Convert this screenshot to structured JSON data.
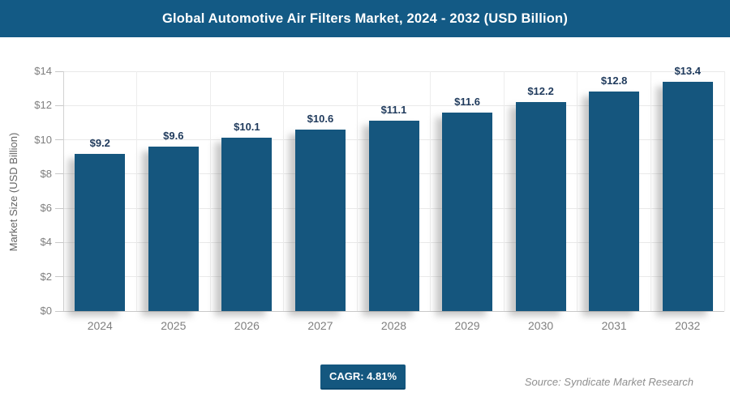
{
  "header": {
    "title": "Global Automotive Air Filters Market, 2024 - 2032 (USD Billion)",
    "bg_color": "#135a85",
    "text_color": "#ffffff"
  },
  "chart_data": {
    "type": "bar",
    "title": "Global Automotive Air Filters Market, 2024 - 2032 (USD Billion)",
    "categories": [
      "2024",
      "2025",
      "2026",
      "2027",
      "2028",
      "2029",
      "2030",
      "2031",
      "2032"
    ],
    "values": [
      9.2,
      9.6,
      10.1,
      10.6,
      11.1,
      11.6,
      12.2,
      12.8,
      13.4
    ],
    "data_labels": [
      "$9.2",
      "$9.6",
      "$10.1",
      "$10.6",
      "$11.1",
      "$11.6",
      "$12.2",
      "$12.8",
      "$13.4"
    ],
    "xlabel": "",
    "ylabel": "Market Size (USD Billion)",
    "ylim": [
      0,
      14
    ],
    "ytick_step": 2,
    "ytick_labels": [
      "$0",
      "$2",
      "$4",
      "$6",
      "$8",
      "$10",
      "$12",
      "$14"
    ],
    "grid": true,
    "legend": "none",
    "bar_color": "#15567e",
    "value_label_color": "#1f3a5c"
  },
  "footer": {
    "cagr_label": "CAGR: 4.81%",
    "cagr_bg_color": "#14577f",
    "source_text": "Source: Syndicate Market Research"
  }
}
